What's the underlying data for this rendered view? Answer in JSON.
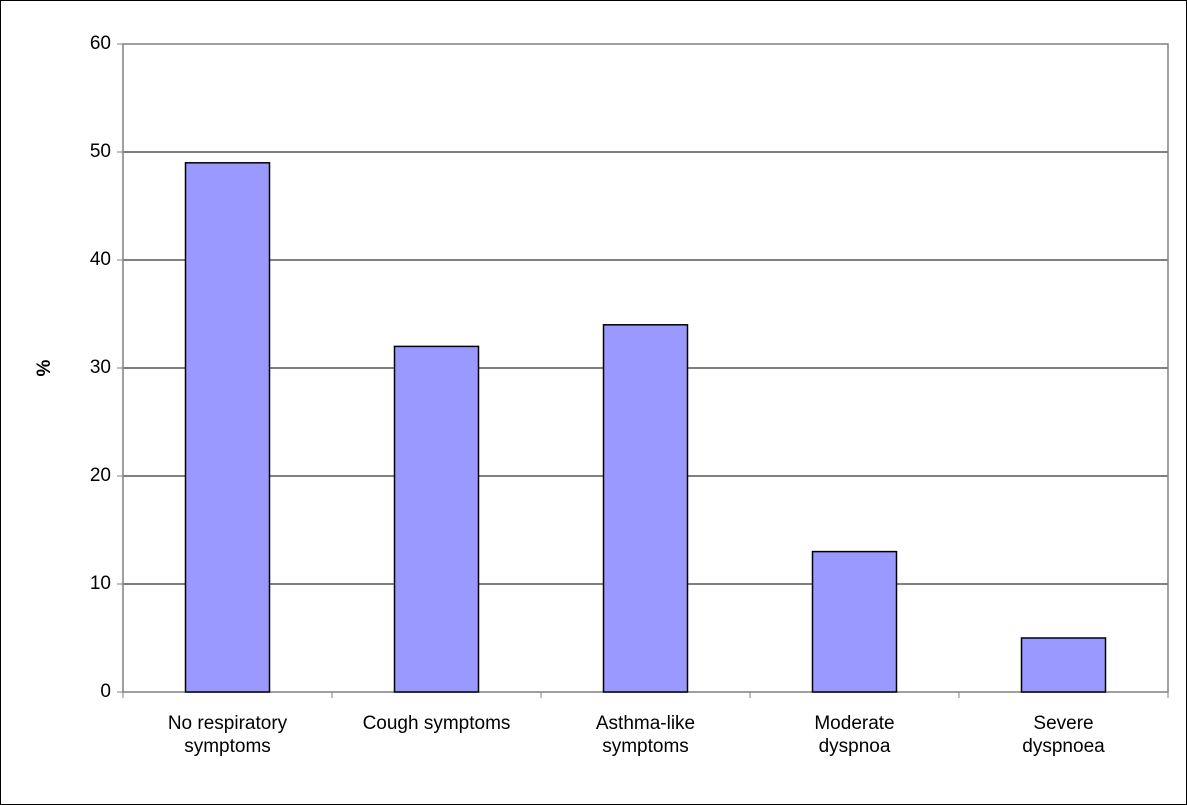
{
  "chart_data": {
    "type": "bar",
    "categories": [
      "No respiratory\nsymptoms",
      "Cough symptoms",
      "Asthma-like\nsymptoms",
      "Moderate\ndyspnoa",
      "Severe\ndyspnoea"
    ],
    "values": [
      49,
      32,
      34,
      13,
      5
    ],
    "color": "#9999ff",
    "y_label": "%",
    "ylim": [
      0,
      60
    ],
    "yticks": [
      0,
      10,
      20,
      30,
      40,
      50,
      60
    ],
    "grid": true
  }
}
